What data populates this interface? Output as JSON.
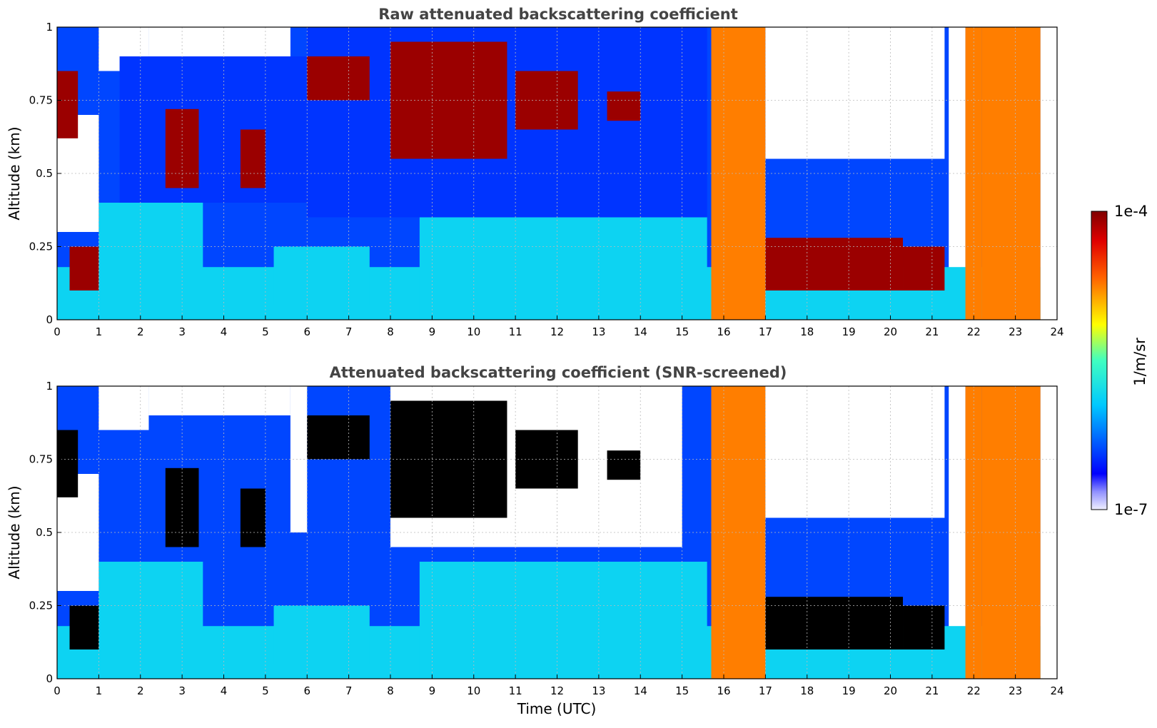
{
  "chart_data": [
    {
      "type": "heatmap",
      "title": "Raw attenuated backscattering coefficient",
      "xlabel": "",
      "ylabel": "Altitude (km)",
      "xlim": [
        0,
        24
      ],
      "ylim": [
        0,
        1
      ],
      "xticks": [
        "0",
        "1",
        "2",
        "3",
        "4",
        "5",
        "6",
        "7",
        "8",
        "9",
        "10",
        "11",
        "12",
        "13",
        "14",
        "15",
        "16",
        "17",
        "18",
        "19",
        "20",
        "21",
        "22",
        "23",
        "24"
      ],
      "yticks": [
        "0",
        "0.25",
        "0.5",
        "0.75",
        "1"
      ],
      "grid": true,
      "layers": [
        {
          "name": "clear-sky",
          "level": 0.0,
          "segments": [
            [
              0,
              1,
              0.3,
              0.7
            ],
            [
              1,
              2.2,
              0.85,
              1.0
            ],
            [
              2.2,
              5.6,
              0.9,
              1.0
            ],
            [
              15.7,
              16.2,
              0.95,
              1.0
            ],
            [
              17,
              21.3,
              0.55,
              1.0
            ],
            [
              21.4,
              21.8,
              0.0,
              1.0
            ]
          ]
        },
        {
          "name": "aerosol-boundary-layer",
          "level": 0.38,
          "segments": [
            [
              0,
              23.6,
              0.0,
              0.18
            ],
            [
              1,
              3.5,
              0.15,
              0.4
            ],
            [
              5.2,
              7.5,
              0.05,
              0.25
            ],
            [
              8.7,
              15.6,
              0.0,
              0.35
            ]
          ]
        },
        {
          "name": "noise-high",
          "level": 0.18,
          "segments": [
            [
              6,
              15.6,
              0.35,
              1.0
            ],
            [
              1.5,
              6,
              0.4,
              0.9
            ]
          ]
        },
        {
          "name": "cloud",
          "level": 0.95,
          "segments": [
            [
              0,
              0.5,
              0.62,
              0.85
            ],
            [
              0.3,
              1.0,
              0.1,
              0.25
            ],
            [
              2.6,
              3.4,
              0.45,
              0.72
            ],
            [
              4.4,
              5.0,
              0.45,
              0.65
            ],
            [
              6,
              7.5,
              0.75,
              0.9
            ],
            [
              8,
              10.8,
              0.55,
              0.95
            ],
            [
              11,
              12.5,
              0.65,
              0.85
            ],
            [
              13.2,
              14,
              0.68,
              0.78
            ],
            [
              17,
              20.3,
              0.1,
              0.28
            ],
            [
              20.3,
              21.3,
              0.1,
              0.25
            ]
          ]
        },
        {
          "name": "precipitation-columns",
          "level": 0.75,
          "segments": [
            [
              15.7,
              17,
              0.0,
              1.0
            ],
            [
              22.2,
              23.6,
              0.0,
              1.0
            ],
            [
              21.8,
              22.2,
              0.0,
              1.0
            ]
          ]
        }
      ]
    },
    {
      "type": "heatmap",
      "title": "Attenuated backscattering coefficient (SNR-screened)",
      "xlabel": "Time (UTC)",
      "ylabel": "Altitude (km)",
      "xlim": [
        0,
        24
      ],
      "ylim": [
        0,
        1
      ],
      "xticks": [
        "0",
        "1",
        "2",
        "3",
        "4",
        "5",
        "6",
        "7",
        "8",
        "9",
        "10",
        "11",
        "12",
        "13",
        "14",
        "15",
        "16",
        "17",
        "18",
        "19",
        "20",
        "21",
        "22",
        "23",
        "24"
      ],
      "yticks": [
        "0",
        "0.25",
        "0.5",
        "0.75",
        "1"
      ],
      "grid": true,
      "layers": [
        {
          "name": "clear-sky",
          "level": 0.0,
          "segments": [
            [
              0,
              1,
              0.3,
              0.7
            ],
            [
              1,
              2.2,
              0.85,
              1.0
            ],
            [
              2.2,
              5.6,
              0.9,
              1.0
            ],
            [
              5.6,
              6,
              0.5,
              1.0
            ],
            [
              8,
              15,
              0.45,
              1.0
            ],
            [
              15.7,
              21.3,
              0.55,
              1.0
            ],
            [
              21.4,
              21.8,
              0.0,
              1.0
            ]
          ]
        },
        {
          "name": "aerosol-boundary-layer",
          "level": 0.38,
          "segments": [
            [
              0,
              23.6,
              0.0,
              0.18
            ],
            [
              1,
              3.5,
              0.15,
              0.4
            ],
            [
              5.2,
              7.5,
              0.05,
              0.25
            ],
            [
              8.7,
              15.6,
              0.0,
              0.4
            ]
          ]
        },
        {
          "name": "cloud-screened",
          "level": 1.0,
          "segments": [
            [
              0,
              0.5,
              0.62,
              0.85
            ],
            [
              0.3,
              1.0,
              0.1,
              0.25
            ],
            [
              2.6,
              3.4,
              0.45,
              0.72
            ],
            [
              4.4,
              5.0,
              0.45,
              0.65
            ],
            [
              6,
              7.5,
              0.75,
              0.9
            ],
            [
              8,
              10.8,
              0.55,
              0.95
            ],
            [
              11,
              12.5,
              0.65,
              0.85
            ],
            [
              13.2,
              14,
              0.68,
              0.78
            ],
            [
              17,
              20.3,
              0.1,
              0.28
            ],
            [
              20.3,
              21.3,
              0.1,
              0.25
            ]
          ]
        },
        {
          "name": "precipitation-columns",
          "level": 0.75,
          "segments": [
            [
              15.7,
              17,
              0.0,
              1.0
            ],
            [
              22.2,
              23.6,
              0.0,
              1.0
            ],
            [
              21.8,
              22.2,
              0.0,
              1.0
            ]
          ]
        }
      ]
    }
  ],
  "colorbar": {
    "label": "1/m/sr",
    "max_label": "1e-4",
    "min_label": "1e-7",
    "scale": "log",
    "range": [
      1e-07,
      0.0001
    ],
    "colormap": "jet",
    "colors": [
      "#e8e8ff",
      "#0000ff",
      "#00c8ff",
      "#80ff80",
      "#ffff00",
      "#ff8000",
      "#ff0000",
      "#800000"
    ]
  },
  "colors": {
    "title": "#444444",
    "frame": "#000000",
    "grid": "#bbbbbb",
    "background": "#ffffff",
    "screened_saturation": "#000000"
  }
}
